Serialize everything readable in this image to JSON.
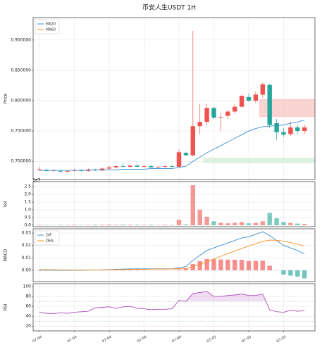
{
  "title": "币安人生USDT  1H",
  "chart_data": [
    {
      "type": "candlestick",
      "ylabel": "Price",
      "up_color": "#ef5350",
      "down_color": "#26a69a",
      "open": [
        0.686,
        0.686,
        0.684,
        0.684,
        0.683,
        0.684,
        0.685,
        0.684,
        0.686,
        0.685,
        0.688,
        0.69,
        0.692,
        0.691,
        0.693,
        0.691,
        0.692,
        0.69,
        0.691,
        0.692,
        0.691,
        0.714,
        0.71,
        0.758,
        0.765,
        0.788,
        0.772,
        0.775,
        0.782,
        0.79,
        0.806,
        0.8,
        0.81,
        0.826,
        0.763,
        0.748,
        0.745,
        0.756,
        0.75
      ],
      "high": [
        0.691,
        0.688,
        0.686,
        0.687,
        0.686,
        0.688,
        0.687,
        0.689,
        0.688,
        0.69,
        0.693,
        0.694,
        0.697,
        0.695,
        0.696,
        0.694,
        0.695,
        0.693,
        0.694,
        0.695,
        0.72,
        0.716,
        0.915,
        0.795,
        0.795,
        0.79,
        0.78,
        0.785,
        0.795,
        0.81,
        0.812,
        0.815,
        0.83,
        0.828,
        0.77,
        0.755,
        0.765,
        0.76,
        0.76
      ],
      "low": [
        0.684,
        0.683,
        0.682,
        0.682,
        0.681,
        0.683,
        0.683,
        0.683,
        0.684,
        0.684,
        0.686,
        0.688,
        0.69,
        0.689,
        0.69,
        0.689,
        0.69,
        0.688,
        0.689,
        0.69,
        0.69,
        0.709,
        0.708,
        0.745,
        0.76,
        0.77,
        0.75,
        0.77,
        0.778,
        0.788,
        0.798,
        0.796,
        0.805,
        0.755,
        0.735,
        0.74,
        0.742,
        0.745,
        0.745
      ],
      "close": [
        0.687,
        0.684,
        0.685,
        0.683,
        0.684,
        0.685,
        0.684,
        0.686,
        0.685,
        0.688,
        0.69,
        0.692,
        0.691,
        0.693,
        0.691,
        0.692,
        0.69,
        0.691,
        0.692,
        0.691,
        0.715,
        0.71,
        0.758,
        0.765,
        0.788,
        0.772,
        0.773,
        0.782,
        0.79,
        0.808,
        0.8,
        0.81,
        0.827,
        0.76,
        0.748,
        0.744,
        0.756,
        0.75,
        0.756
      ],
      "series": [
        {
          "name": "MA20",
          "color": "#3a8fd6",
          "values": [
            0.685,
            0.685,
            0.685,
            0.685,
            0.685,
            0.685,
            0.685,
            0.686,
            0.686,
            0.686,
            0.686,
            0.686,
            0.687,
            0.687,
            0.687,
            0.687,
            0.688,
            0.688,
            0.688,
            0.688,
            0.69,
            0.692,
            0.7,
            0.707,
            0.714,
            0.72,
            0.726,
            0.732,
            0.738,
            0.744,
            0.75,
            0.754,
            0.757,
            0.758,
            0.759,
            0.76,
            0.763,
            0.765,
            0.768
          ]
        },
        {
          "name": "MA60",
          "color": "#ff8c1a",
          "values": [
            null,
            null,
            null,
            null,
            null,
            null,
            null,
            null,
            null,
            null,
            null,
            null,
            null,
            null,
            null,
            null,
            null,
            null,
            null,
            null,
            null,
            null,
            null,
            null,
            null,
            null,
            null,
            null,
            null,
            null,
            null,
            null,
            null,
            null,
            null,
            null,
            null,
            null,
            null
          ]
        }
      ],
      "zones": [
        {
          "start": 32,
          "low": 0.773,
          "high": 0.803,
          "color": "#f8c4c4"
        },
        {
          "start": 24,
          "low": 0.697,
          "high": 0.706,
          "color": "#d3ecd6"
        }
      ],
      "ylim": [
        0.67,
        0.937
      ],
      "yticks": [
        {
          "value": 0.7,
          "label": "0.700000"
        },
        {
          "value": 0.75,
          "label": "0.750000"
        },
        {
          "value": 0.8,
          "label": "0.800000"
        },
        {
          "value": 0.85,
          "label": "0.850000"
        },
        {
          "value": 0.9,
          "label": "0.900000"
        }
      ],
      "grid": true,
      "legend": "upper left"
    },
    {
      "type": "volume",
      "ylabel": "Vol",
      "offset_text": "1e7",
      "values": [
        0.02,
        0.02,
        0.01,
        0.02,
        0.02,
        0.03,
        0.02,
        0.02,
        0.03,
        0.03,
        0.04,
        0.03,
        0.04,
        0.03,
        0.03,
        0.02,
        0.03,
        0.02,
        0.03,
        0.02,
        0.35,
        0.05,
        2.6,
        1.0,
        0.55,
        0.25,
        0.15,
        0.12,
        0.15,
        0.2,
        0.12,
        0.15,
        0.25,
        0.8,
        0.45,
        0.2,
        0.15,
        0.1,
        0.08
      ],
      "ylim": [
        -0.1,
        2.83
      ],
      "yticks": [
        {
          "value": 0,
          "label": "0.0"
        },
        0.5,
        {
          "value": 1,
          "label": "1.0"
        },
        1.5,
        {
          "value": 2,
          "label": "2.0"
        },
        2.5
      ],
      "grid": true
    },
    {
      "type": "macd",
      "ylabel": "MACD",
      "series": [
        {
          "name": "DIF",
          "color": "#3a8fd6",
          "values": [
            0.0003,
            0.0002,
            0.0001,
            0,
            0,
            0.0001,
            0.0001,
            0.0002,
            0.0003,
            0.0004,
            0.0006,
            0.0008,
            0.001,
            0.0011,
            0.0012,
            0.0012,
            0.0012,
            0.0012,
            0.0012,
            0.0012,
            0.002,
            0.003,
            0.008,
            0.012,
            0.016,
            0.018,
            0.02,
            0.022,
            0.024,
            0.026,
            0.027,
            0.029,
            0.031,
            0.028,
            0.024,
            0.02,
            0.018,
            0.016,
            0.013
          ]
        },
        {
          "name": "DEA",
          "color": "#ff8c1a",
          "values": [
            0.0006,
            0.0005,
            0.0004,
            0.0003,
            0.0003,
            0.0003,
            0.0003,
            0.0003,
            0.0003,
            0.0003,
            0.0004,
            0.0005,
            0.0006,
            0.0007,
            0.0008,
            0.0009,
            0.001,
            0.001,
            0.001,
            0.0011,
            0.0013,
            0.0016,
            0.0029,
            0.0047,
            0.0069,
            0.0091,
            0.0113,
            0.0134,
            0.0155,
            0.0176,
            0.0195,
            0.0214,
            0.0233,
            0.0243,
            0.0242,
            0.0234,
            0.0223,
            0.0211,
            0.0195
          ]
        }
      ],
      "histogram": [
        -0.0003,
        -0.0003,
        -0.0003,
        -0.0003,
        -0.0003,
        -0.0002,
        -0.0002,
        -0.0001,
        0,
        0.0001,
        0.0002,
        0.0003,
        0.0004,
        0.0004,
        0.0004,
        0.0003,
        0.0002,
        0.0002,
        0.0002,
        0.0001,
        0.0007,
        0.0014,
        0.0051,
        0.0073,
        0.0091,
        0.0089,
        0.0087,
        0.0086,
        0.0085,
        0.0084,
        0.0075,
        0.0076,
        0.0077,
        0.0037,
        -0.0002,
        -0.0034,
        -0.0043,
        -0.0051,
        -0.0065
      ],
      "up_color": "#ef5350",
      "down_color": "#26a69a",
      "ylim": [
        -0.0091,
        0.0334
      ],
      "yticks": [
        {
          "value": 0,
          "label": "0.00"
        },
        {
          "value": 0.01,
          "label": "0.01"
        },
        {
          "value": 0.02,
          "label": "0.02"
        },
        {
          "value": 0.03,
          "label": "0.03"
        }
      ],
      "grid": true,
      "legend": "upper left"
    },
    {
      "type": "line",
      "ylabel": "RSI",
      "color": "#b04ac0",
      "values": [
        48,
        46,
        45,
        47,
        46,
        48,
        49,
        50,
        57,
        58,
        59,
        56,
        59,
        60,
        56,
        55,
        53,
        54,
        54,
        55,
        72,
        70,
        86,
        88,
        90,
        80,
        80,
        82,
        83,
        85,
        82,
        82,
        85,
        53,
        49,
        48,
        52,
        50,
        51
      ],
      "levels": [
        70,
        30
      ],
      "categories": [
        "07-04",
        null,
        null,
        null,
        null,
        "07-04",
        null,
        null,
        null,
        null,
        "07-04",
        null,
        null,
        null,
        null,
        "07-04",
        null,
        null,
        null,
        null,
        "07-04",
        null,
        null,
        null,
        null,
        "07-05",
        null,
        null,
        null,
        null,
        "07-05",
        null,
        null,
        null,
        null,
        "07-05",
        null,
        null,
        null
      ],
      "ylim": [
        10.3,
        105.8
      ],
      "yticks": [
        20,
        40,
        60,
        80,
        100
      ],
      "grid": true
    }
  ]
}
